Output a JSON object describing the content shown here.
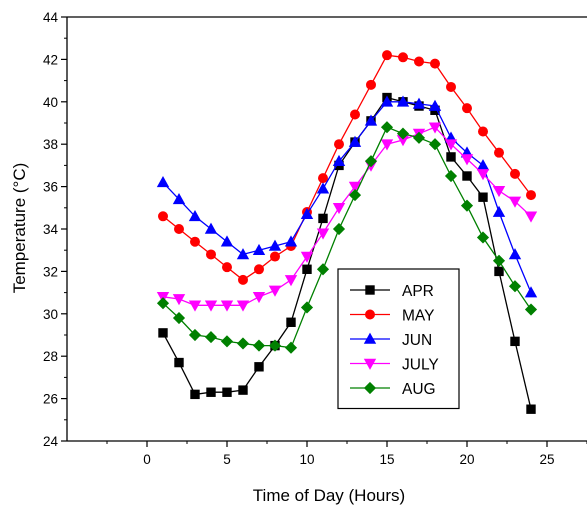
{
  "chart_data": {
    "type": "line",
    "title": "",
    "xlabel": "Time of Day (Hours)",
    "ylabel": "Temperature (°C)",
    "xlim": [
      -5,
      27.5
    ],
    "ylim": [
      24,
      44
    ],
    "xticks": [
      0,
      5,
      10,
      15,
      20,
      25
    ],
    "yticks": [
      24,
      26,
      28,
      30,
      32,
      34,
      36,
      38,
      40,
      42,
      44
    ],
    "grid": false,
    "legend_position": "center-right",
    "x": [
      1,
      2,
      3,
      4,
      5,
      6,
      7,
      8,
      9,
      10,
      11,
      12,
      13,
      14,
      15,
      16,
      17,
      18,
      19,
      20,
      21,
      22,
      23,
      24
    ],
    "series": [
      {
        "name": "APR",
        "color": "#000000",
        "marker": "square",
        "values": [
          29.1,
          27.7,
          26.2,
          26.3,
          26.3,
          26.4,
          27.5,
          28.5,
          29.6,
          32.1,
          34.5,
          37.0,
          38.1,
          39.1,
          40.2,
          40.0,
          39.8,
          39.6,
          37.4,
          36.5,
          35.5,
          32.0,
          28.7,
          25.5
        ]
      },
      {
        "name": "MAY",
        "color": "#ff0000",
        "marker": "circle",
        "values": [
          34.6,
          34.0,
          33.4,
          32.8,
          32.2,
          31.6,
          32.1,
          32.7,
          33.2,
          34.8,
          36.4,
          38.0,
          39.4,
          40.8,
          42.2,
          42.1,
          41.9,
          41.8,
          40.7,
          39.7,
          38.6,
          37.6,
          36.6,
          35.6
        ]
      },
      {
        "name": "JUN",
        "color": "#0000ff",
        "marker": "triangle-up",
        "values": [
          36.2,
          35.4,
          34.6,
          34.0,
          33.4,
          32.8,
          33.0,
          33.2,
          33.4,
          34.7,
          35.9,
          37.2,
          38.1,
          39.1,
          40.0,
          40.0,
          39.9,
          39.8,
          38.3,
          37.6,
          37.0,
          34.8,
          32.8,
          31.0
        ]
      },
      {
        "name": "JULY",
        "color": "#ff00ff",
        "marker": "triangle-down",
        "values": [
          30.8,
          30.7,
          30.4,
          30.4,
          30.4,
          30.4,
          30.8,
          31.1,
          31.6,
          32.7,
          33.8,
          35.0,
          36.0,
          37.0,
          38.0,
          38.2,
          38.5,
          38.8,
          38.0,
          37.3,
          36.6,
          35.8,
          35.3,
          34.6
        ]
      },
      {
        "name": "AUG",
        "color": "#008000",
        "marker": "diamond",
        "values": [
          30.5,
          29.8,
          29.0,
          28.9,
          28.7,
          28.6,
          28.5,
          28.5,
          28.4,
          30.3,
          32.1,
          34.0,
          35.6,
          37.2,
          38.8,
          38.5,
          38.3,
          38.0,
          36.5,
          35.1,
          33.6,
          32.5,
          31.3,
          30.2
        ]
      }
    ]
  }
}
